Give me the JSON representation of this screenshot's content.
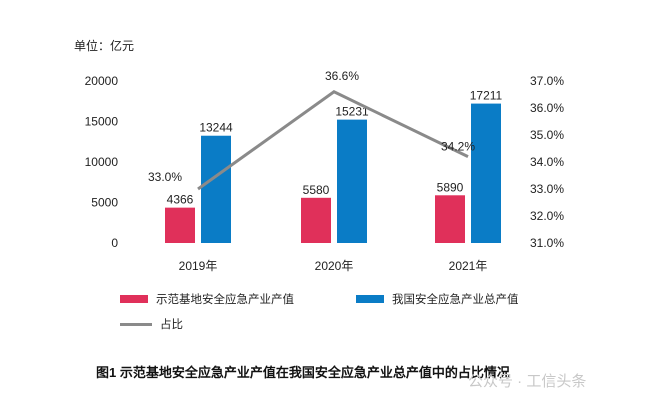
{
  "y_unit_label": "单位：亿元",
  "chart_data": {
    "type": "bar",
    "categories": [
      "2019年",
      "2020年",
      "2021年"
    ],
    "series": [
      {
        "name": "示范基地安全应急产业产值",
        "values": [
          4366,
          5580,
          5890
        ],
        "color": "#e0305a",
        "type": "bar",
        "axis": "left"
      },
      {
        "name": "我国安全应急产业总产值",
        "values": [
          13244,
          15231,
          17211
        ],
        "color": "#0a7cc6",
        "type": "bar",
        "axis": "left"
      },
      {
        "name": "占比",
        "values": [
          33.0,
          36.6,
          34.2
        ],
        "color": "#8a8a8a",
        "type": "line",
        "axis": "right"
      }
    ],
    "left_axis": {
      "min": 0,
      "max": 20000,
      "ticks": [
        "0",
        "5000",
        "10000",
        "15000",
        "20000"
      ]
    },
    "right_axis": {
      "min": 31.0,
      "max": 37.0,
      "ticks": [
        "31.0%",
        "32.0%",
        "33.0%",
        "34.0%",
        "35.0%",
        "36.0%",
        "37.0%"
      ]
    },
    "data_labels": {
      "bar1": [
        "4366",
        "5580",
        "5890"
      ],
      "bar2": [
        "13244",
        "15231",
        "17211"
      ],
      "line": [
        "33.0%",
        "36.6%",
        "34.2%"
      ]
    },
    "legend_placement": "bottom",
    "grid": false
  },
  "caption": "图1  示范基地安全应急产业产值在我国安全应急产业总产值中的占比情况",
  "watermark": "公众号 · 工信头条"
}
